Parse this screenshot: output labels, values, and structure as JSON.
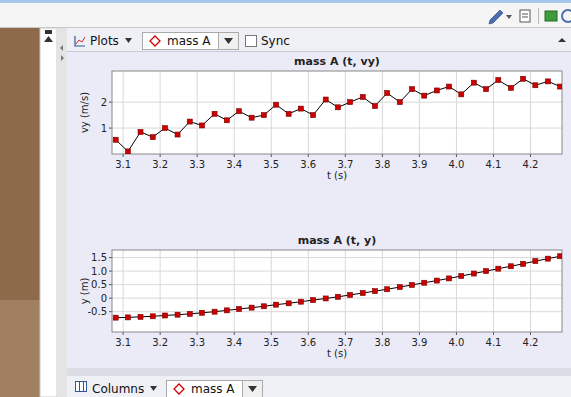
{
  "ui": {
    "plots_menu": "Plots",
    "track": "mass A",
    "sync": "Sync",
    "columns_menu": "Columns",
    "columns_track": "mass A"
  },
  "chart_data": [
    {
      "type": "line",
      "title": "mass A (t, vy)",
      "xlabel": "t (s)",
      "ylabel": "vy (m/s)",
      "x": [
        3.08,
        3.113,
        3.147,
        3.18,
        3.213,
        3.247,
        3.28,
        3.313,
        3.347,
        3.38,
        3.413,
        3.447,
        3.48,
        3.513,
        3.547,
        3.58,
        3.613,
        3.647,
        3.68,
        3.713,
        3.747,
        3.78,
        3.813,
        3.847,
        3.88,
        3.913,
        3.947,
        3.98,
        4.013,
        4.047,
        4.08,
        4.113,
        4.147,
        4.18,
        4.213,
        4.247,
        4.28
      ],
      "values": [
        0.55,
        0.1,
        0.85,
        0.65,
        1.0,
        0.75,
        1.25,
        1.1,
        1.55,
        1.3,
        1.65,
        1.4,
        1.5,
        1.9,
        1.55,
        1.75,
        1.5,
        2.1,
        1.8,
        2.0,
        2.2,
        1.85,
        2.35,
        2.0,
        2.5,
        2.25,
        2.45,
        2.6,
        2.3,
        2.75,
        2.5,
        2.85,
        2.55,
        2.9,
        2.65,
        2.8,
        2.6
      ],
      "xlim": [
        3.07,
        4.285
      ],
      "ylim": [
        0,
        3.2
      ],
      "xticks": [
        3.1,
        3.2,
        3.3,
        3.4,
        3.5,
        3.6,
        3.7,
        3.8,
        3.9,
        {
          "value": 4,
          "label": "4.0"
        },
        4.1,
        4.2
      ],
      "yticks": [
        1,
        2
      ],
      "grid": true,
      "color": "#cc0000",
      "marker": "square",
      "line_style": "solid"
    },
    {
      "type": "line",
      "title": "mass A (t, y)",
      "xlabel": "t (s)",
      "ylabel": "y (m)",
      "x": [
        3.08,
        3.113,
        3.147,
        3.18,
        3.213,
        3.247,
        3.28,
        3.313,
        3.347,
        3.38,
        3.413,
        3.447,
        3.48,
        3.513,
        3.547,
        3.58,
        3.613,
        3.647,
        3.68,
        3.713,
        3.747,
        3.78,
        3.813,
        3.847,
        3.88,
        3.913,
        3.947,
        3.98,
        4.013,
        4.047,
        4.08,
        4.113,
        4.147,
        4.18,
        4.213,
        4.247,
        4.28
      ],
      "values": [
        -0.72,
        -0.71,
        -0.69,
        -0.67,
        -0.64,
        -0.61,
        -0.58,
        -0.54,
        -0.5,
        -0.45,
        -0.4,
        -0.35,
        -0.3,
        -0.24,
        -0.19,
        -0.13,
        -0.07,
        -0.01,
        0.05,
        0.12,
        0.19,
        0.26,
        0.33,
        0.41,
        0.49,
        0.57,
        0.65,
        0.73,
        0.82,
        0.91,
        1.0,
        1.09,
        1.18,
        1.27,
        1.37,
        1.46,
        1.55
      ],
      "xlim": [
        3.07,
        4.285
      ],
      "ylim": [
        -1.25,
        1.78
      ],
      "xticks": [
        3.1,
        3.2,
        3.3,
        3.4,
        3.5,
        3.6,
        3.7,
        3.8,
        3.9,
        {
          "value": 4,
          "label": "4.0"
        },
        4.1,
        4.2
      ],
      "yticks": [
        -0.5,
        0,
        0.5,
        {
          "value": 1,
          "label": "1.0"
        },
        1.5
      ],
      "grid": true,
      "color": "#cc0000",
      "marker": "square",
      "line_style": "solid"
    }
  ]
}
